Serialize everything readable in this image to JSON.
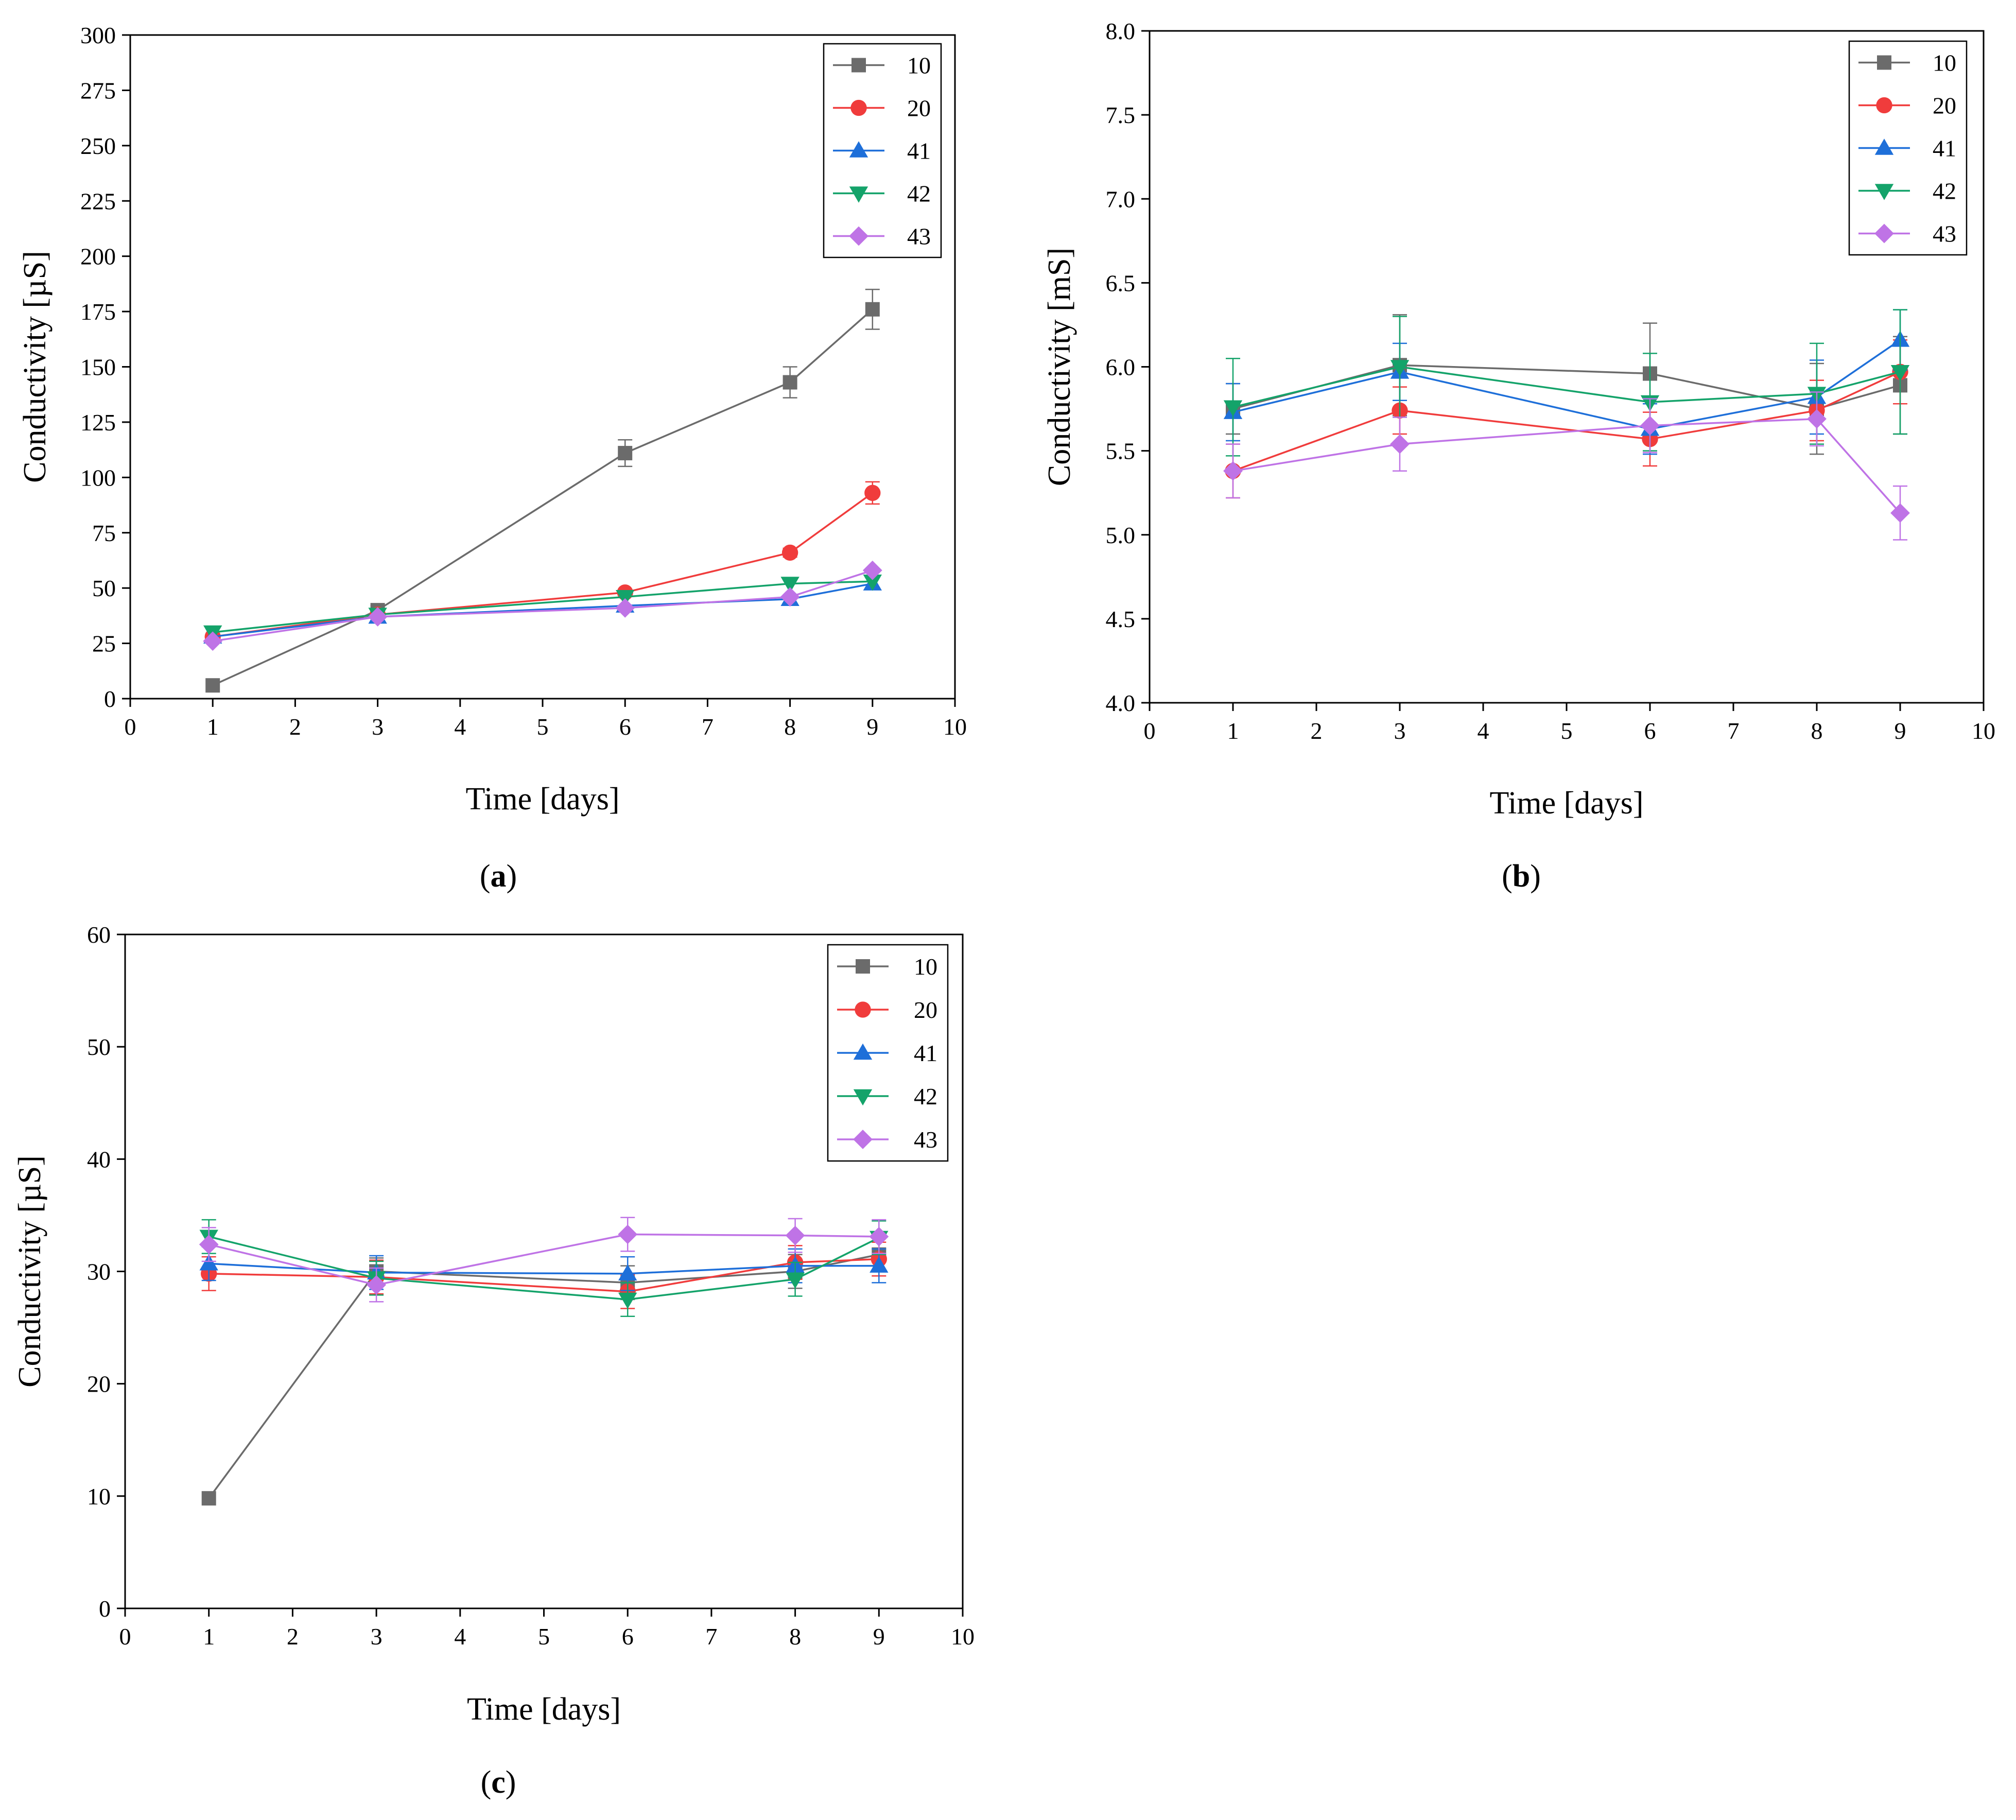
{
  "colors": {
    "10": "#6b6b6b",
    "20": "#f03c3c",
    "41": "#1e6fd9",
    "42": "#14a36a",
    "43": "#bf73e6",
    "axis": "#000000"
  },
  "chart_data": [
    {
      "panel": "a",
      "type": "line",
      "caption_open": "(",
      "caption_letter": "a",
      "caption_close": ")",
      "xlabel": "Time [days]",
      "ylabel": "Conductivity [µS]",
      "xlim": [
        0,
        10
      ],
      "ylim": [
        0,
        300
      ],
      "xticks": [
        0,
        1,
        2,
        3,
        4,
        5,
        6,
        7,
        8,
        9,
        10
      ],
      "xtick_labels": [
        "0",
        "1",
        "2",
        "3",
        "4",
        "5",
        "6",
        "7",
        "8",
        "9",
        "10"
      ],
      "yticks": [
        0,
        25,
        50,
        75,
        100,
        125,
        150,
        175,
        200,
        225,
        250,
        275,
        300
      ],
      "ytick_labels": [
        "0",
        "25",
        "50",
        "75",
        "100",
        "125",
        "150",
        "175",
        "200",
        "225",
        "250",
        "275",
        "300"
      ],
      "legend_position": "top-right",
      "x": [
        1,
        3,
        6,
        8,
        9
      ],
      "series": [
        {
          "name": "10",
          "marker": "square",
          "values": [
            6,
            40,
            111,
            143,
            176
          ],
          "errors": [
            0,
            2,
            6,
            7,
            9
          ]
        },
        {
          "name": "20",
          "marker": "circle",
          "values": [
            28,
            38,
            48,
            66,
            93
          ],
          "errors": [
            0,
            0,
            0,
            2,
            5
          ]
        },
        {
          "name": "41",
          "marker": "triangle-up",
          "values": [
            28,
            37,
            42,
            45,
            52
          ],
          "errors": [
            0,
            0,
            0,
            0,
            0
          ]
        },
        {
          "name": "42",
          "marker": "triangle-down",
          "values": [
            30,
            38,
            46,
            52,
            53
          ],
          "errors": [
            0,
            0,
            0,
            0,
            0
          ]
        },
        {
          "name": "43",
          "marker": "diamond",
          "values": [
            26,
            37,
            41,
            46,
            58
          ],
          "errors": [
            0,
            0,
            0,
            0,
            0
          ]
        }
      ]
    },
    {
      "panel": "b",
      "type": "line",
      "caption_open": "(",
      "caption_letter": "b",
      "caption_close": ")",
      "xlabel": "Time [days]",
      "ylabel": "Conductivity [mS]",
      "xlim": [
        0,
        10
      ],
      "ylim": [
        4.0,
        8.0
      ],
      "xticks": [
        0,
        1,
        2,
        3,
        4,
        5,
        6,
        7,
        8,
        9,
        10
      ],
      "xtick_labels": [
        "0",
        "1",
        "2",
        "3",
        "4",
        "5",
        "6",
        "7",
        "8",
        "9",
        "10"
      ],
      "yticks": [
        4.0,
        4.5,
        5.0,
        5.5,
        6.0,
        6.5,
        7.0,
        7.5,
        8.0
      ],
      "ytick_labels": [
        "4.0",
        "4.5",
        "5.0",
        "5.5",
        "6.0",
        "6.5",
        "7.0",
        "7.5",
        "8.0"
      ],
      "legend_position": "top-right",
      "x": [
        1,
        3,
        6,
        8,
        9
      ],
      "series": [
        {
          "name": "10",
          "marker": "square",
          "values": [
            5.75,
            6.01,
            5.96,
            5.75,
            5.89
          ],
          "errors": [
            0.15,
            0.3,
            0.3,
            0.27,
            0.29
          ]
        },
        {
          "name": "20",
          "marker": "circle",
          "values": [
            5.38,
            5.74,
            5.57,
            5.74,
            5.97
          ],
          "errors": [
            0.16,
            0.14,
            0.16,
            0.18,
            0.19
          ]
        },
        {
          "name": "41",
          "marker": "triangle-up",
          "values": [
            5.73,
            5.97,
            5.63,
            5.82,
            6.16
          ],
          "errors": [
            0.17,
            0.17,
            0.15,
            0.22,
            0.18
          ]
        },
        {
          "name": "42",
          "marker": "triangle-down",
          "values": [
            5.76,
            6.0,
            5.79,
            5.84,
            5.97
          ],
          "errors": [
            0.29,
            0.3,
            0.29,
            0.3,
            0.37
          ]
        },
        {
          "name": "43",
          "marker": "diamond",
          "values": [
            5.38,
            5.54,
            5.65,
            5.69,
            5.13
          ],
          "errors": [
            0.16,
            0.16,
            0.16,
            0.16,
            0.16
          ]
        }
      ]
    },
    {
      "panel": "c",
      "type": "line",
      "caption_open": "(",
      "caption_letter": "c",
      "caption_close": ")",
      "xlabel": "Time [days]",
      "ylabel": "Conductivity [µS]",
      "xlim": [
        0,
        10
      ],
      "ylim": [
        0,
        60
      ],
      "xticks": [
        0,
        1,
        2,
        3,
        4,
        5,
        6,
        7,
        8,
        9,
        10
      ],
      "xtick_labels": [
        "0",
        "1",
        "2",
        "3",
        "4",
        "5",
        "6",
        "7",
        "8",
        "9",
        "10"
      ],
      "yticks": [
        0,
        10,
        20,
        30,
        40,
        50,
        60
      ],
      "ytick_labels": [
        "0",
        "10",
        "20",
        "30",
        "40",
        "50",
        "60"
      ],
      "legend_position": "top-right",
      "x": [
        1,
        3,
        6,
        8,
        9
      ],
      "series": [
        {
          "name": "10",
          "marker": "square",
          "values": [
            9.8,
            30,
            29,
            30,
            31.5
          ],
          "errors": [
            0,
            1.2,
            1.5,
            1.5,
            1.5
          ]
        },
        {
          "name": "20",
          "marker": "circle",
          "values": [
            29.8,
            29.5,
            28.2,
            30.8,
            31.1
          ],
          "errors": [
            1.5,
            1.5,
            1.5,
            1.5,
            1.5
          ]
        },
        {
          "name": "41",
          "marker": "triangle-up",
          "values": [
            30.7,
            29.9,
            29.8,
            30.5,
            30.5
          ],
          "errors": [
            1.5,
            1.5,
            1.5,
            1.5,
            1.5
          ]
        },
        {
          "name": "42",
          "marker": "triangle-down",
          "values": [
            33.1,
            29.4,
            27.5,
            29.3,
            33.0
          ],
          "errors": [
            1.5,
            1.5,
            1.5,
            1.5,
            1.5
          ]
        },
        {
          "name": "43",
          "marker": "diamond",
          "values": [
            32.4,
            28.8,
            33.3,
            33.2,
            33.1
          ],
          "errors": [
            1.5,
            1.5,
            1.5,
            1.5,
            1.5
          ]
        }
      ]
    }
  ]
}
